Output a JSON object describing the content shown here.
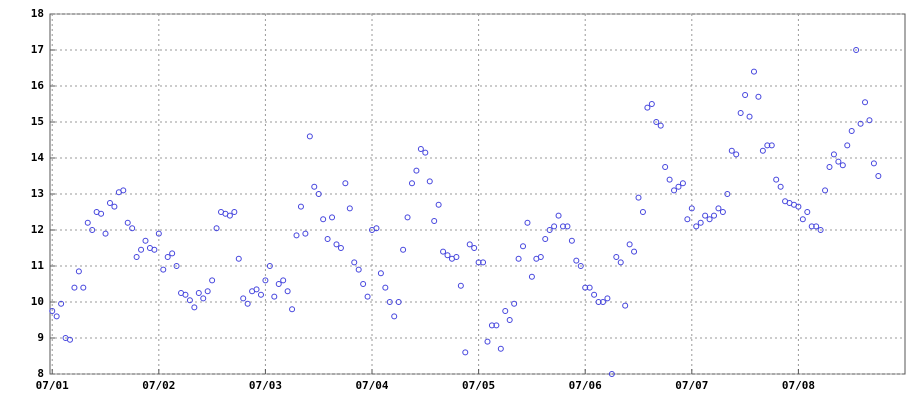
{
  "chart_data": {
    "type": "scatter",
    "color": "#4444dd",
    "grid": true,
    "xlim": [
      -0.5,
      192
    ],
    "ylim": [
      8,
      18
    ],
    "xticks": [
      {
        "value": 0,
        "label": "07/01"
      },
      {
        "value": 24,
        "label": "07/02"
      },
      {
        "value": 48,
        "label": "07/03"
      },
      {
        "value": 72,
        "label": "07/04"
      },
      {
        "value": 96,
        "label": "07/05"
      },
      {
        "value": 120,
        "label": "07/06"
      },
      {
        "value": 144,
        "label": "07/07"
      },
      {
        "value": 168,
        "label": "07/08"
      }
    ],
    "yticks": [
      8,
      9,
      10,
      11,
      12,
      13,
      14,
      15,
      16,
      17,
      18
    ],
    "x": [
      0,
      1,
      2,
      3,
      4,
      5,
      6,
      7,
      8,
      9,
      10,
      11,
      12,
      13,
      14,
      15,
      16,
      17,
      18,
      19,
      20,
      21,
      22,
      23,
      24,
      25,
      26,
      27,
      28,
      29,
      30,
      31,
      32,
      33,
      34,
      35,
      36,
      37,
      38,
      39,
      40,
      41,
      42,
      43,
      44,
      45,
      46,
      47,
      48,
      49,
      50,
      51,
      52,
      53,
      54,
      55,
      56,
      57,
      58,
      59,
      60,
      61,
      62,
      63,
      64,
      65,
      66,
      67,
      68,
      69,
      70,
      71,
      72,
      73,
      74,
      75,
      76,
      77,
      78,
      79,
      80,
      81,
      82,
      83,
      84,
      85,
      86,
      87,
      88,
      89,
      90,
      91,
      92,
      93,
      94,
      95,
      96,
      97,
      98,
      99,
      100,
      101,
      102,
      103,
      104,
      105,
      106,
      107,
      108,
      109,
      110,
      111,
      112,
      113,
      114,
      115,
      116,
      117,
      118,
      119,
      120,
      121,
      122,
      123,
      124,
      125,
      126,
      127,
      128,
      129,
      130,
      131,
      132,
      133,
      134,
      135,
      136,
      137,
      138,
      139,
      140,
      141,
      142,
      143,
      144,
      145,
      146,
      147,
      148,
      149,
      150,
      151,
      152,
      153,
      154,
      155,
      156,
      157,
      158,
      159,
      160,
      161,
      162,
      163,
      164,
      165,
      166,
      167,
      168,
      169,
      170,
      171,
      172,
      173,
      174,
      175,
      176,
      177,
      178,
      179,
      180,
      181,
      182,
      183,
      184,
      185,
      186
    ],
    "values": [
      9.75,
      9.6,
      9.95,
      9.0,
      8.95,
      10.4,
      10.85,
      10.4,
      12.2,
      12.0,
      12.5,
      12.45,
      11.9,
      12.75,
      12.65,
      13.05,
      13.1,
      12.2,
      12.05,
      11.25,
      11.45,
      11.7,
      11.5,
      11.45,
      11.9,
      10.9,
      11.25,
      11.35,
      11.0,
      10.25,
      10.2,
      10.05,
      9.85,
      10.25,
      10.1,
      10.3,
      10.6,
      12.05,
      12.5,
      12.45,
      12.4,
      12.5,
      11.2,
      10.1,
      9.95,
      10.3,
      10.35,
      10.2,
      10.6,
      11.0,
      10.15,
      10.5,
      10.6,
      10.3,
      9.8,
      11.85,
      12.65,
      11.9,
      14.6,
      13.2,
      13.0,
      12.3,
      11.75,
      12.35,
      11.6,
      11.5,
      13.3,
      12.6,
      11.1,
      10.9,
      10.5,
      10.15,
      12.0,
      12.05,
      10.8,
      10.4,
      10.0,
      9.6,
      10.0,
      11.45,
      12.35,
      13.3,
      13.65,
      14.25,
      14.15,
      13.35,
      12.25,
      12.7,
      11.4,
      11.3,
      11.2,
      11.25,
      10.45,
      8.6,
      11.6,
      11.5,
      11.1,
      11.1,
      8.9,
      9.35,
      9.35,
      8.7,
      9.75,
      9.5,
      9.95,
      11.2,
      11.55,
      12.2,
      10.7,
      11.2,
      11.25,
      11.75,
      12.0,
      12.1,
      12.4,
      12.1,
      12.1,
      11.7,
      11.15,
      11.0,
      10.4,
      10.4,
      10.2,
      10.0,
      10.0,
      10.1,
      8.0,
      11.25,
      11.1,
      9.9,
      11.6,
      11.4,
      12.9,
      12.5,
      15.4,
      15.5,
      15.0,
      14.9,
      13.75,
      13.4,
      13.1,
      13.2,
      13.3,
      12.3,
      12.6,
      12.1,
      12.2,
      12.4,
      12.3,
      12.4,
      12.6,
      12.5,
      13.0,
      14.2,
      14.1,
      15.25,
      15.75,
      15.15,
      16.4,
      15.7,
      14.2,
      14.35,
      14.35,
      13.4,
      13.2,
      12.8,
      12.75,
      12.7,
      12.65,
      12.3,
      12.5,
      12.1,
      12.1,
      12.0,
      13.1,
      13.75,
      14.1,
      13.9,
      13.8,
      14.35,
      14.75,
      17.0,
      14.95,
      15.55,
      15.05,
      13.85,
      13.5
    ]
  }
}
